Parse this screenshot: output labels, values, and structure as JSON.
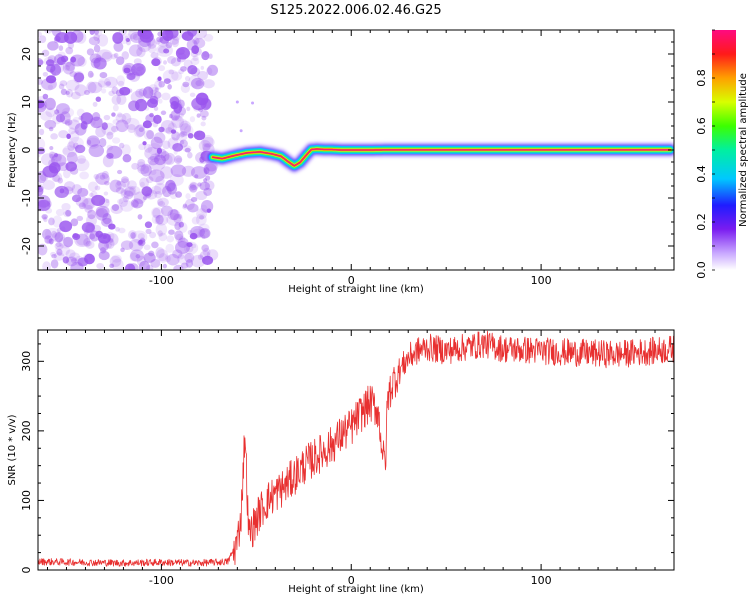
{
  "title": "S125.2022.006.02.46.G25",
  "colors": {
    "line": "#e83030",
    "heat_line": "#f0207a",
    "noise": "#9a55ee"
  },
  "chart_data": [
    {
      "type": "heatmap",
      "name": "spectrogram",
      "xlabel": "Height of straight line (km)",
      "ylabel": "Frequency (Hz)",
      "xlim": [
        -165,
        170
      ],
      "ylim": [
        -25,
        25
      ],
      "xticks": [
        -100,
        0,
        100
      ],
      "yticks": [
        -20,
        -10,
        0,
        10,
        20
      ],
      "noise_region_x": [
        -165,
        -73
      ],
      "ridge": {
        "x": [
          -73,
          -68,
          -62,
          -55,
          -48,
          -42,
          -37,
          -33,
          -30,
          -27,
          -24,
          -21,
          -18,
          -14,
          -10,
          -5,
          0,
          5,
          10,
          20,
          40,
          60,
          80,
          100,
          120,
          140,
          160,
          168
        ],
        "y": [
          -1.5,
          -1.8,
          -1.2,
          -0.6,
          -0.4,
          -0.8,
          -1.3,
          -2.5,
          -3.3,
          -2.6,
          -1.2,
          0.1,
          0.2,
          0.1,
          0.1,
          0.0,
          0.0,
          0.0,
          0.0,
          0.05,
          0.05,
          0.05,
          0.05,
          0.05,
          0.05,
          0.05,
          0.05,
          0.05
        ]
      },
      "colorbar": {
        "label": "Normalized spectral amplitude",
        "ticks": [
          0.0,
          0.2,
          0.4,
          0.6,
          0.8
        ],
        "range": [
          0,
          1
        ]
      }
    },
    {
      "type": "line",
      "name": "snr",
      "xlabel": "Height of straight line (km)",
      "ylabel": "SNR (10 * v/v)",
      "xlim": [
        -165,
        170
      ],
      "ylim": [
        0,
        345
      ],
      "xticks": [
        -100,
        0,
        100
      ],
      "yticks": [
        0,
        100,
        200,
        300
      ],
      "x": [
        -165,
        -140,
        -120,
        -100,
        -80,
        -65,
        -60,
        -58,
        -56,
        -54,
        -52,
        -48,
        -44,
        -40,
        -35,
        -30,
        -25,
        -20,
        -15,
        -10,
        -5,
        0,
        5,
        10,
        14,
        17,
        18,
        19,
        20,
        22,
        25,
        30,
        35,
        40,
        50,
        60,
        70,
        80,
        100,
        120,
        140,
        160,
        170
      ],
      "y": [
        12,
        11,
        10,
        11,
        10,
        12,
        40,
        80,
        200,
        50,
        60,
        85,
        100,
        110,
        120,
        135,
        150,
        160,
        170,
        180,
        195,
        205,
        225,
        240,
        230,
        160,
        150,
        240,
        255,
        270,
        285,
        305,
        315,
        320,
        315,
        320,
        325,
        318,
        315,
        312,
        310,
        315,
        318
      ]
    }
  ]
}
